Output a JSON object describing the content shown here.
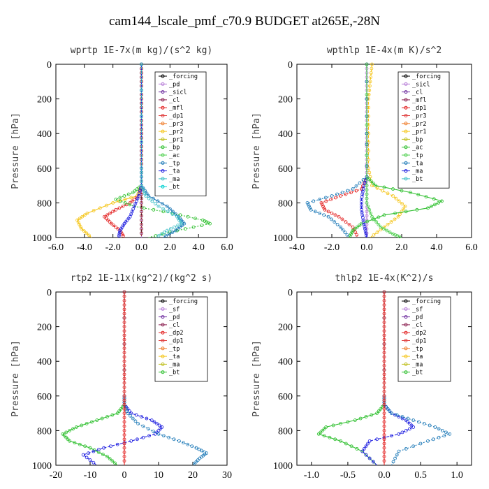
{
  "figure_title": "cam144_lscale_pmf_c70.9  BUDGET at265E,-28N",
  "chart_data": [
    {
      "type": "line",
      "title": "wprtp  1E-7x(m kg)/(s^2 kg)",
      "xlabel": "",
      "ylabel": "Pressure [hPa]",
      "xlim": [
        -6,
        6
      ],
      "ylim": [
        1000,
        0
      ],
      "xticks": [
        "-6.0",
        "-4.0",
        "-2.0",
        "0.0",
        "2.0",
        "4.0",
        "6.0"
      ],
      "yticks": [
        "0",
        "200",
        "400",
        "600",
        "800",
        "1000"
      ],
      "legend": [
        "_forcing",
        "_pd",
        "_sicl",
        "_cl",
        "_mfl",
        "_dp1",
        "_pr3",
        "_pr2",
        "_pr1",
        "_bp",
        "_ac",
        "_tp",
        "_ta",
        "_ma",
        "_bt"
      ],
      "series": [
        {
          "name": "_forcing",
          "color": "#000000",
          "x": [
            0,
            0,
            0,
            0,
            0,
            0,
            0,
            0,
            0,
            0,
            0
          ],
          "y": [
            0,
            100,
            200,
            300,
            400,
            500,
            600,
            700,
            800,
            900,
            1000
          ]
        },
        {
          "name": "_pd",
          "color": "#b87fd8",
          "x": [
            0,
            0,
            0,
            0,
            0,
            0,
            0,
            0,
            0,
            0,
            0
          ],
          "y": [
            0,
            100,
            200,
            300,
            400,
            500,
            600,
            700,
            800,
            900,
            1000
          ]
        },
        {
          "name": "_mfl",
          "color": "#a0303a",
          "x": [
            0,
            0,
            0,
            0,
            0,
            0,
            0,
            0,
            0,
            0,
            0
          ],
          "y": [
            0,
            100,
            200,
            300,
            400,
            500,
            600,
            700,
            800,
            900,
            1000
          ]
        },
        {
          "name": "_pr1",
          "color": "#f5c518",
          "x": [
            0,
            0,
            0,
            -0.3,
            -2.0,
            -3.8,
            -4.5,
            -4.2,
            -3.5
          ],
          "y": [
            0,
            600,
            700,
            760,
            800,
            860,
            900,
            950,
            1000
          ]
        },
        {
          "name": "_dp1",
          "color": "#e32020",
          "x": [
            0,
            0,
            0,
            -0.2,
            -0.8,
            -1.8,
            -2.6,
            -2.1,
            -1.5,
            -1.2
          ],
          "y": [
            0,
            600,
            700,
            760,
            800,
            840,
            880,
            920,
            960,
            1000
          ]
        },
        {
          "name": "_bp",
          "color": "#30c030",
          "x": [
            0,
            0,
            0,
            -0.6,
            -1.8,
            -0.5,
            2.2,
            4.3,
            4.8,
            2.5,
            0.5
          ],
          "y": [
            0,
            600,
            700,
            740,
            780,
            820,
            860,
            900,
            920,
            960,
            1000
          ]
        },
        {
          "name": "_tp",
          "color": "#1e7ab8",
          "x": [
            0,
            0,
            0,
            0.5,
            1.8,
            2.6,
            3.0,
            2.4,
            1.5
          ],
          "y": [
            0,
            600,
            700,
            760,
            820,
            880,
            920,
            960,
            1000
          ]
        },
        {
          "name": "_ta",
          "color": "#2020e0",
          "x": [
            0,
            0,
            0,
            -0.2,
            -0.5,
            -0.8,
            -1.2,
            -1.5,
            -1.6
          ],
          "y": [
            0,
            600,
            700,
            760,
            820,
            880,
            920,
            960,
            1000
          ]
        },
        {
          "name": "_ma",
          "color": "#40c0c8",
          "x": [
            0,
            0,
            0,
            0.3,
            1.2,
            2.5,
            2.8,
            1.8,
            1.0
          ],
          "y": [
            0,
            600,
            700,
            760,
            820,
            880,
            920,
            960,
            1000
          ]
        }
      ]
    },
    {
      "type": "line",
      "title": "wpthlp  1E-4x(m K)/s^2",
      "xlabel": "",
      "ylabel": "Pressure [hPa]",
      "xlim": [
        -4,
        6
      ],
      "ylim": [
        1000,
        0
      ],
      "xticks": [
        "-4.0",
        "-2.0",
        "0.0",
        "2.0",
        "4.0",
        "6.0"
      ],
      "yticks": [
        "0",
        "200",
        "400",
        "600",
        "800",
        "1000"
      ],
      "legend": [
        "_forcing",
        "_sicl",
        "_cl",
        "_mfl",
        "_dp1",
        "_pr3",
        "_pr2",
        "_pr1",
        "_bp",
        "_ac",
        "_tp",
        "_ta",
        "_ma",
        "_bt"
      ],
      "series": [
        {
          "name": "_forcing",
          "color": "#b87fd8",
          "x": [
            0,
            0,
            0,
            0,
            0,
            0,
            0,
            0,
            0,
            0,
            0
          ],
          "y": [
            0,
            100,
            200,
            300,
            400,
            500,
            600,
            700,
            800,
            900,
            1000
          ]
        },
        {
          "name": "_pr1",
          "color": "#f5c518",
          "x": [
            0.3,
            0.2,
            0.1,
            0.1,
            0.1,
            0.3,
            1.5,
            2.2,
            1.8,
            1.0,
            0.2
          ],
          "y": [
            0,
            100,
            200,
            400,
            600,
            700,
            760,
            820,
            880,
            940,
            1000
          ]
        },
        {
          "name": "_dp1",
          "color": "#e32020",
          "x": [
            0,
            0,
            0,
            -0.3,
            -1.5,
            -2.6,
            -2.4,
            -1.6,
            -0.8,
            -0.5
          ],
          "y": [
            0,
            400,
            650,
            720,
            760,
            800,
            840,
            880,
            940,
            1000
          ]
        },
        {
          "name": "_bp",
          "color": "#30c030",
          "x": [
            0,
            0,
            0,
            0.5,
            2.5,
            4.3,
            3.5,
            1.0,
            -0.3,
            -0.8,
            -1.0
          ],
          "y": [
            0,
            400,
            650,
            700,
            740,
            790,
            830,
            870,
            920,
            960,
            1000
          ]
        },
        {
          "name": "_ta",
          "color": "#2020e0",
          "x": [
            0,
            0,
            0,
            -0.2,
            -0.3,
            -0.3,
            -0.2,
            -0.1,
            0
          ],
          "y": [
            0,
            400,
            650,
            720,
            780,
            840,
            900,
            950,
            1000
          ]
        },
        {
          "name": "_ma",
          "color": "#1e7ab8",
          "x": [
            0,
            0,
            0,
            -0.8,
            -2.0,
            -3.4,
            -3.2,
            -2.2,
            -1.5,
            -1.0
          ],
          "y": [
            0,
            400,
            650,
            720,
            760,
            800,
            840,
            880,
            940,
            1000
          ]
        },
        {
          "name": "_ac",
          "color": "#50d050",
          "x": [
            0,
            0,
            0,
            0.3,
            0.8,
            1.5,
            2.0
          ],
          "y": [
            0,
            700,
            800,
            880,
            940,
            980,
            1000
          ]
        }
      ]
    },
    {
      "type": "line",
      "title": "rtp2  1E-11x(kg^2)/(kg^2 s)",
      "xlabel": "",
      "ylabel": "Pressure [hPa]",
      "xlim": [
        -20,
        30
      ],
      "ylim": [
        1000,
        0
      ],
      "xticks": [
        "-20",
        "-10",
        "0",
        "10",
        "20",
        "30"
      ],
      "yticks": [
        "0",
        "200",
        "400",
        "600",
        "800",
        "1000"
      ],
      "legend": [
        "_forcing",
        "_sf",
        "_pd",
        "_cl",
        "_dp2",
        "_dp1",
        "_tp",
        "_ta",
        "_ma",
        "_bt"
      ],
      "series": [
        {
          "name": "_dp2",
          "color": "#30c030",
          "x": [
            0,
            0,
            0,
            -2,
            -8,
            -14,
            -18,
            -16,
            -10,
            -5,
            -2
          ],
          "y": [
            0,
            600,
            650,
            700,
            740,
            780,
            820,
            860,
            900,
            950,
            1000
          ]
        },
        {
          "name": "_ta",
          "color": "#2020e0",
          "x": [
            0,
            0,
            0,
            2,
            8,
            11,
            9,
            2,
            -6,
            -12,
            -8
          ],
          "y": [
            0,
            600,
            650,
            700,
            740,
            780,
            820,
            860,
            900,
            940,
            1000
          ]
        },
        {
          "name": "_tp",
          "color": "#1e7ab8",
          "x": [
            0,
            0,
            0,
            1,
            4,
            10,
            16,
            21,
            24,
            22,
            20
          ],
          "y": [
            0,
            600,
            650,
            700,
            760,
            820,
            860,
            900,
            930,
            960,
            1000
          ]
        },
        {
          "name": "_forcing",
          "color": "#e32020",
          "x": [
            0,
            0,
            0,
            0,
            0,
            0,
            0,
            0,
            0,
            0,
            0
          ],
          "y": [
            0,
            100,
            200,
            300,
            400,
            500,
            600,
            700,
            800,
            900,
            1000
          ]
        }
      ]
    },
    {
      "type": "line",
      "title": "thlp2  1E-4x(K^2)/s",
      "xlabel": "",
      "ylabel": "Pressure [hPa]",
      "xlim": [
        -1.2,
        1.2
      ],
      "ylim": [
        1000,
        0
      ],
      "xticks": [
        "-1.0",
        "-0.5",
        "0.0",
        "0.5",
        "1.0"
      ],
      "yticks": [
        "0",
        "200",
        "400",
        "600",
        "800",
        "1000"
      ],
      "legend": [
        "_forcing",
        "_sf",
        "_pd",
        "_cl",
        "_dp2",
        "_dp1",
        "_tp",
        "_ta",
        "_ma",
        "_bt"
      ],
      "series": [
        {
          "name": "_dp2",
          "color": "#30c030",
          "x": [
            0,
            0,
            0,
            -0.1,
            -0.4,
            -0.8,
            -0.9,
            -0.6,
            -0.3,
            -0.1
          ],
          "y": [
            0,
            600,
            650,
            700,
            740,
            780,
            820,
            860,
            920,
            1000
          ]
        },
        {
          "name": "_ta",
          "color": "#2020e0",
          "x": [
            0,
            0,
            0,
            0.1,
            0.3,
            0.4,
            0.2,
            -0.2,
            -0.3,
            -0.1
          ],
          "y": [
            0,
            600,
            650,
            700,
            740,
            780,
            820,
            860,
            920,
            1000
          ]
        },
        {
          "name": "_tp",
          "color": "#1e7ab8",
          "x": [
            0,
            0,
            0,
            0.1,
            0.4,
            0.7,
            0.9,
            0.6,
            0.2,
            0.1
          ],
          "y": [
            0,
            600,
            650,
            700,
            740,
            780,
            820,
            860,
            920,
            1000
          ]
        },
        {
          "name": "_forcing",
          "color": "#e32020",
          "x": [
            0,
            0,
            0,
            0,
            0,
            0,
            0,
            0,
            0,
            0,
            0
          ],
          "y": [
            0,
            100,
            200,
            300,
            400,
            500,
            600,
            700,
            800,
            900,
            1000
          ]
        }
      ]
    }
  ]
}
